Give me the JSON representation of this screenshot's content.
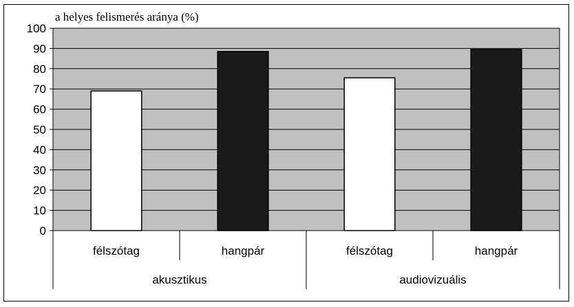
{
  "chart_data": {
    "type": "bar",
    "title": "",
    "ylabel": "a helyes felismerés aránya (%)",
    "xlabel": "",
    "ylim": [
      0,
      100
    ],
    "yticks": [
      0,
      10,
      20,
      30,
      40,
      50,
      60,
      70,
      80,
      90,
      100
    ],
    "grid": true,
    "legend": "none",
    "groups": [
      {
        "label": "akusztikus",
        "bars": [
          {
            "category": "félszótag",
            "value": 69,
            "color": "#ffffff"
          },
          {
            "category": "hangpár",
            "value": 88.5,
            "color": "#1a1a1a"
          }
        ]
      },
      {
        "label": "audiovizuális",
        "bars": [
          {
            "category": "félszótag",
            "value": 75.5,
            "color": "#ffffff"
          },
          {
            "category": "hangpár",
            "value": 89.5,
            "color": "#1a1a1a"
          }
        ]
      }
    ],
    "colors": {
      "plot_background": "#c0c0c0",
      "gridline": "#000000"
    }
  }
}
